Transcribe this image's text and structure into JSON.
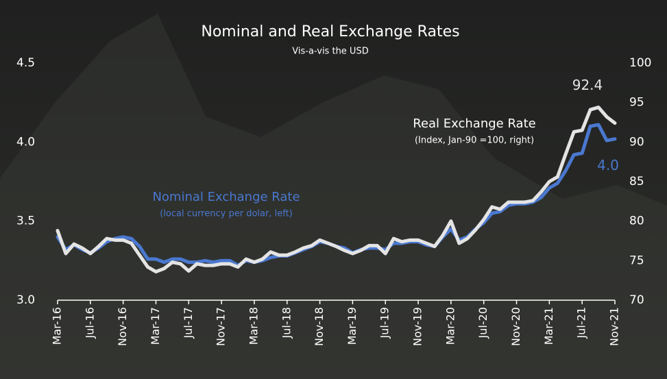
{
  "chart_data": {
    "type": "line",
    "title": "Nominal and Real Exchange Rates",
    "subtitle": "Vis-a-vis the USD",
    "annotations": {
      "nominal_label": "Nominal Exchange Rate",
      "nominal_note": "(local currency per dolar, left)",
      "real_label": "Real Exchange Rate",
      "real_note": "(Index, Jan-90 =100, right)"
    },
    "categories": [
      "Mar-16",
      null,
      null,
      null,
      "Jul-16",
      null,
      null,
      null,
      "Nov-16",
      null,
      null,
      null,
      "Mar-17",
      null,
      null,
      null,
      "Jul-17",
      null,
      null,
      null,
      "Nov-17",
      null,
      null,
      null,
      "Mar-18",
      null,
      null,
      null,
      "Jul-18",
      null,
      null,
      null,
      "Nov-18",
      null,
      null,
      null,
      "Mar-19",
      null,
      null,
      null,
      "Jul-19",
      null,
      null,
      null,
      "Nov-19",
      null,
      null,
      null,
      "Mar-20",
      null,
      null,
      null,
      "Jul-20",
      null,
      null,
      null,
      "Nov-20",
      null,
      null,
      null,
      "Mar-21",
      null,
      null,
      null,
      "Jul-21",
      null,
      null,
      null,
      "Nov-21"
    ],
    "series": [
      {
        "name": "Nominal Exchange Rate",
        "color": "#4a78d0",
        "axis": "y",
        "values": [
          3.4,
          3.32,
          3.35,
          3.32,
          3.3,
          3.33,
          3.37,
          3.39,
          3.4,
          3.39,
          3.34,
          3.26,
          3.26,
          3.24,
          3.26,
          3.26,
          3.24,
          3.24,
          3.25,
          3.24,
          3.25,
          3.25,
          3.22,
          3.25,
          3.24,
          3.25,
          3.27,
          3.28,
          3.28,
          3.3,
          3.32,
          3.34,
          3.37,
          3.36,
          3.34,
          3.33,
          3.3,
          3.32,
          3.33,
          3.33,
          3.32,
          3.36,
          3.36,
          3.37,
          3.37,
          3.35,
          3.34,
          3.4,
          3.45,
          3.38,
          3.4,
          3.45,
          3.49,
          3.55,
          3.56,
          3.6,
          3.61,
          3.61,
          3.62,
          3.65,
          3.71,
          3.74,
          3.82,
          3.92,
          3.93,
          4.1,
          4.11,
          4.01,
          4.02
        ],
        "value_labels": [
          null,
          null,
          null,
          null,
          null,
          null,
          null,
          null,
          null,
          null,
          null,
          null,
          null,
          null,
          null,
          null,
          null,
          null,
          null,
          null,
          null,
          null,
          null,
          null,
          null,
          null,
          null,
          null,
          null,
          null,
          null,
          null,
          null,
          null,
          null,
          null,
          null,
          null,
          null,
          null,
          null,
          null,
          null,
          null,
          null,
          null,
          null,
          null,
          null,
          null,
          null,
          null,
          null,
          null,
          null,
          null,
          null,
          null,
          null,
          null,
          null,
          null,
          null,
          null,
          null,
          null,
          null,
          null,
          "4.0"
        ]
      },
      {
        "name": "Real Exchange Rate",
        "color": "#e4e4e4",
        "axis": "y2",
        "values": [
          78.8,
          75.9,
          77.1,
          76.6,
          75.9,
          76.8,
          77.8,
          77.6,
          77.6,
          77.2,
          75.7,
          74.2,
          73.6,
          74.0,
          74.8,
          74.6,
          73.7,
          74.6,
          74.4,
          74.4,
          74.6,
          74.6,
          74.2,
          75.2,
          74.8,
          75.2,
          76.1,
          75.7,
          75.7,
          76.1,
          76.6,
          76.9,
          77.6,
          77.2,
          76.8,
          76.3,
          75.9,
          76.3,
          76.9,
          76.9,
          75.9,
          77.8,
          77.4,
          77.6,
          77.6,
          77.2,
          76.8,
          78.2,
          80.0,
          77.2,
          77.8,
          78.9,
          80.2,
          81.8,
          81.5,
          82.4,
          82.4,
          82.4,
          82.6,
          83.7,
          85.0,
          85.6,
          88.5,
          91.3,
          91.5,
          94.1,
          94.4,
          93.2,
          92.4
        ],
        "value_labels": [
          null,
          null,
          null,
          null,
          null,
          null,
          null,
          null,
          null,
          null,
          null,
          null,
          null,
          null,
          null,
          null,
          null,
          null,
          null,
          null,
          null,
          null,
          null,
          null,
          null,
          null,
          null,
          null,
          null,
          null,
          null,
          null,
          null,
          null,
          null,
          null,
          null,
          null,
          null,
          null,
          null,
          null,
          null,
          null,
          null,
          null,
          null,
          null,
          null,
          null,
          null,
          null,
          null,
          null,
          null,
          null,
          null,
          null,
          null,
          null,
          null,
          null,
          null,
          null,
          null,
          null,
          null,
          null,
          "92.4"
        ]
      }
    ],
    "ylim": [
      3.0,
      4.5
    ],
    "yticks": [
      {
        "value": 3.0,
        "label": "3.0"
      },
      {
        "value": 3.5,
        "label": "3.5"
      },
      {
        "value": 4.0,
        "label": "4.0"
      },
      {
        "value": 4.5,
        "label": "4.5"
      }
    ],
    "y2lim": [
      70,
      100
    ],
    "y2ticks": [
      70,
      75,
      80,
      85,
      90,
      95,
      100
    ],
    "grid": false
  }
}
